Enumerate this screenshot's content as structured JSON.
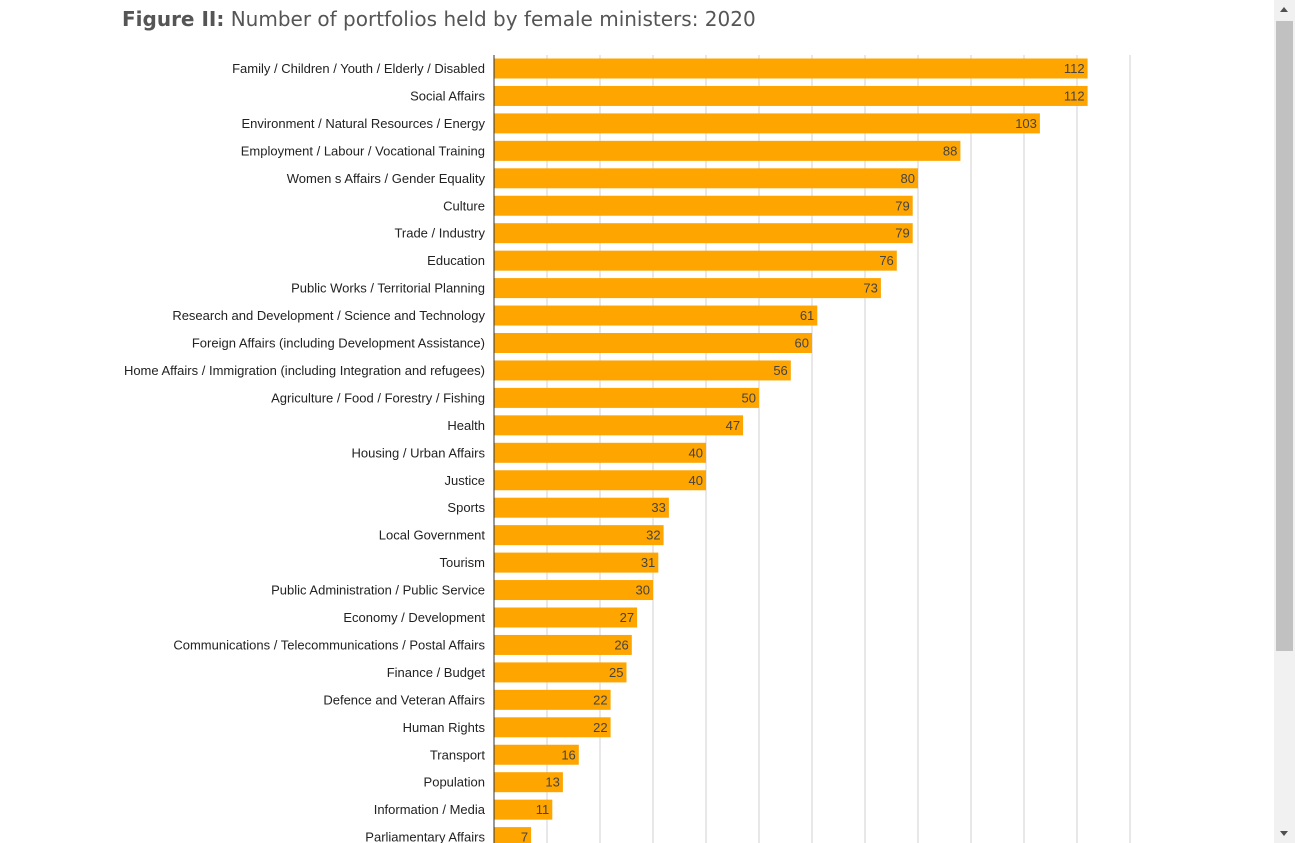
{
  "figure": {
    "title_lead": "Figure II:",
    "title_text": "Number of portfolios held by female ministers: 2020"
  },
  "colors": {
    "bar": "#FFA500",
    "grid": "#d0d0d0",
    "axis": "#333333"
  },
  "chart_data": {
    "type": "bar",
    "orientation": "horizontal",
    "categories": [
      "Family / Children / Youth / Elderly / Disabled",
      "Social Affairs",
      "Environment / Natural Resources / Energy",
      "Employment / Labour / Vocational Training",
      "Women s Affairs / Gender Equality",
      "Culture",
      "Trade / Industry",
      "Education",
      "Public Works / Territorial Planning",
      "Research and Development / Science and Technology",
      "Foreign Affairs (including Development Assistance)",
      "Home Affairs / Immigration (including Integration and refugees)",
      "Agriculture / Food / Forestry / Fishing",
      "Health",
      "Housing / Urban Affairs",
      "Justice",
      "Sports",
      "Local Government",
      "Tourism",
      "Public Administration / Public Service",
      "Economy / Development",
      "Communications / Telecommunications / Postal Affairs",
      "Finance / Budget",
      "Defence and Veteran Affairs",
      "Human Rights",
      "Transport",
      "Population",
      "Information / Media",
      "Parliamentary Affairs"
    ],
    "values": [
      112,
      112,
      103,
      88,
      80,
      79,
      79,
      76,
      73,
      61,
      60,
      56,
      50,
      47,
      40,
      40,
      33,
      32,
      31,
      30,
      27,
      26,
      25,
      22,
      22,
      16,
      13,
      11,
      7
    ],
    "xlim": [
      0,
      120
    ],
    "grid": true,
    "data_labels": true,
    "legend": "none"
  }
}
